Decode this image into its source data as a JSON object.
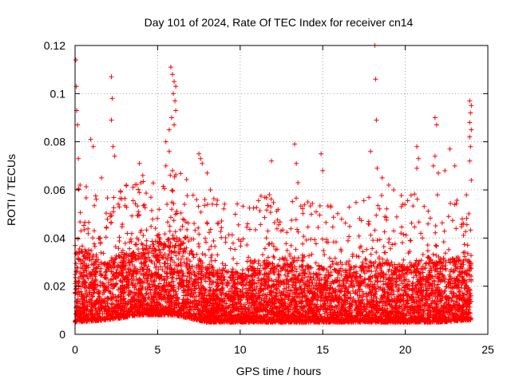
{
  "chart_data": {
    "type": "scatter",
    "title": "Day 101 of 2024, Rate Of TEC Index for receiver cn14",
    "xlabel": "GPS time / hours",
    "ylabel": "ROTI / TECUs",
    "xlim": [
      0,
      25
    ],
    "ylim": [
      0,
      0.12
    ],
    "grid": true,
    "marker": "+",
    "marker_color": "#ff0000",
    "x_ticks": [
      0,
      5,
      10,
      15,
      20,
      25
    ],
    "x_tick_labels": [
      "0",
      "5",
      "10",
      "15",
      "20",
      "25"
    ],
    "y_ticks": [
      0,
      0.02,
      0.04,
      0.06,
      0.08,
      0.1,
      0.12
    ],
    "y_tick_labels": [
      "0",
      "0.02",
      "0.04",
      "0.06",
      "0.08",
      "0.1",
      "0.12"
    ],
    "series": [
      {
        "name": "ROTI",
        "x_range": [
          0,
          24
        ],
        "baseline_envelope": {
          "x": [
            0,
            2,
            4,
            6,
            8,
            10,
            12,
            14,
            16,
            18,
            20,
            22,
            24
          ],
          "low": [
            0.005,
            0.006,
            0.008,
            0.008,
            0.005,
            0.005,
            0.005,
            0.005,
            0.005,
            0.005,
            0.005,
            0.005,
            0.006
          ],
          "dense_high": [
            0.035,
            0.03,
            0.035,
            0.04,
            0.028,
            0.025,
            0.03,
            0.028,
            0.026,
            0.03,
            0.028,
            0.03,
            0.03
          ]
        },
        "notable_points": [
          {
            "x": 0.05,
            "y": 0.114
          },
          {
            "x": 0.08,
            "y": 0.103
          },
          {
            "x": 0.1,
            "y": 0.093
          },
          {
            "x": 0.15,
            "y": 0.087
          },
          {
            "x": 0.2,
            "y": 0.073
          },
          {
            "x": 0.3,
            "y": 0.062
          },
          {
            "x": 0.95,
            "y": 0.081
          },
          {
            "x": 1.1,
            "y": 0.078
          },
          {
            "x": 1.6,
            "y": 0.065
          },
          {
            "x": 2.2,
            "y": 0.107
          },
          {
            "x": 2.25,
            "y": 0.098
          },
          {
            "x": 2.2,
            "y": 0.089
          },
          {
            "x": 2.3,
            "y": 0.078
          },
          {
            "x": 2.4,
            "y": 0.074
          },
          {
            "x": 3.1,
            "y": 0.062
          },
          {
            "x": 3.9,
            "y": 0.071
          },
          {
            "x": 4.1,
            "y": 0.066
          },
          {
            "x": 5.8,
            "y": 0.111
          },
          {
            "x": 5.9,
            "y": 0.108
          },
          {
            "x": 6.0,
            "y": 0.105
          },
          {
            "x": 6.1,
            "y": 0.103
          },
          {
            "x": 5.95,
            "y": 0.1
          },
          {
            "x": 6.05,
            "y": 0.097
          },
          {
            "x": 6.1,
            "y": 0.093
          },
          {
            "x": 5.85,
            "y": 0.09
          },
          {
            "x": 6.0,
            "y": 0.087
          },
          {
            "x": 5.7,
            "y": 0.085
          },
          {
            "x": 5.5,
            "y": 0.08
          },
          {
            "x": 5.7,
            "y": 0.076
          },
          {
            "x": 5.5,
            "y": 0.07
          },
          {
            "x": 5.9,
            "y": 0.068
          },
          {
            "x": 7.5,
            "y": 0.075
          },
          {
            "x": 7.6,
            "y": 0.073
          },
          {
            "x": 7.7,
            "y": 0.071
          },
          {
            "x": 8.0,
            "y": 0.067
          },
          {
            "x": 8.2,
            "y": 0.06
          },
          {
            "x": 11.9,
            "y": 0.072
          },
          {
            "x": 13.3,
            "y": 0.079
          },
          {
            "x": 13.4,
            "y": 0.071
          },
          {
            "x": 13.5,
            "y": 0.063
          },
          {
            "x": 14.1,
            "y": 0.055
          },
          {
            "x": 14.9,
            "y": 0.075
          },
          {
            "x": 15.0,
            "y": 0.068
          },
          {
            "x": 18.15,
            "y": 0.12
          },
          {
            "x": 18.2,
            "y": 0.106
          },
          {
            "x": 18.25,
            "y": 0.089
          },
          {
            "x": 17.9,
            "y": 0.076
          },
          {
            "x": 18.3,
            "y": 0.069
          },
          {
            "x": 18.6,
            "y": 0.065
          },
          {
            "x": 19.0,
            "y": 0.062
          },
          {
            "x": 19.3,
            "y": 0.06
          },
          {
            "x": 20.7,
            "y": 0.078
          },
          {
            "x": 20.8,
            "y": 0.073
          },
          {
            "x": 20.7,
            "y": 0.069
          },
          {
            "x": 21.8,
            "y": 0.09
          },
          {
            "x": 21.9,
            "y": 0.087
          },
          {
            "x": 21.8,
            "y": 0.074
          },
          {
            "x": 21.7,
            "y": 0.07
          },
          {
            "x": 22.0,
            "y": 0.067
          },
          {
            "x": 22.4,
            "y": 0.068
          },
          {
            "x": 22.7,
            "y": 0.077
          },
          {
            "x": 23.0,
            "y": 0.07
          },
          {
            "x": 23.9,
            "y": 0.097
          },
          {
            "x": 24.0,
            "y": 0.095
          },
          {
            "x": 23.95,
            "y": 0.092
          },
          {
            "x": 23.9,
            "y": 0.088
          },
          {
            "x": 24.0,
            "y": 0.085
          },
          {
            "x": 23.9,
            "y": 0.082
          },
          {
            "x": 23.95,
            "y": 0.078
          },
          {
            "x": 23.9,
            "y": 0.072
          },
          {
            "x": 24.0,
            "y": 0.064
          }
        ]
      }
    ]
  }
}
